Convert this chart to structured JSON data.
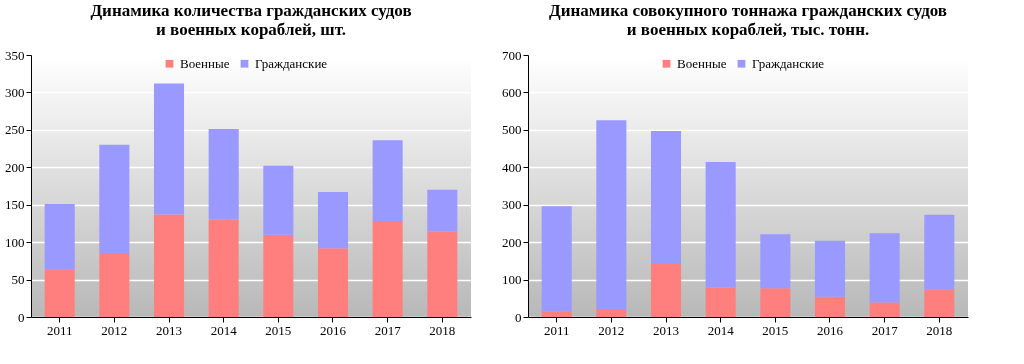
{
  "chart_data": [
    {
      "type": "bar",
      "title": "Динамика количества гражданских судов\nи военных кораблей, шт.",
      "categories": [
        "2011",
        "2012",
        "2013",
        "2014",
        "2015",
        "2016",
        "2017",
        "2018"
      ],
      "stacked": true,
      "ylim": [
        0,
        350
      ],
      "yticks": [
        0,
        50,
        100,
        150,
        200,
        250,
        300,
        350
      ],
      "grid": "y",
      "legend": "top",
      "series": [
        {
          "name": "Военные",
          "color": "#ff7f7f",
          "values": [
            63,
            84,
            137,
            130,
            110,
            92,
            127,
            114
          ]
        },
        {
          "name": "Гражданские",
          "color": "#9999ff",
          "values": [
            88,
            146,
            175,
            121,
            92,
            75,
            109,
            56
          ]
        }
      ]
    },
    {
      "type": "bar",
      "title": "Динамика совокупного тоннажа гражданских судов\nи военных кораблей, тыс. тонн.",
      "categories": [
        "2011",
        "2012",
        "2013",
        "2014",
        "2015",
        "2016",
        "2017",
        "2018"
      ],
      "stacked": true,
      "ylim": [
        0,
        700
      ],
      "yticks": [
        0,
        100,
        200,
        300,
        400,
        500,
        600,
        700
      ],
      "grid": "y",
      "legend": "top",
      "series": [
        {
          "name": "Военные",
          "color": "#ff7f7f",
          "values": [
            15,
            19,
            144,
            79,
            77,
            54,
            39,
            73
          ]
        },
        {
          "name": "Гражданские",
          "color": "#9999ff",
          "values": [
            281,
            507,
            353,
            335,
            144,
            150,
            185,
            200
          ]
        }
      ]
    }
  ]
}
